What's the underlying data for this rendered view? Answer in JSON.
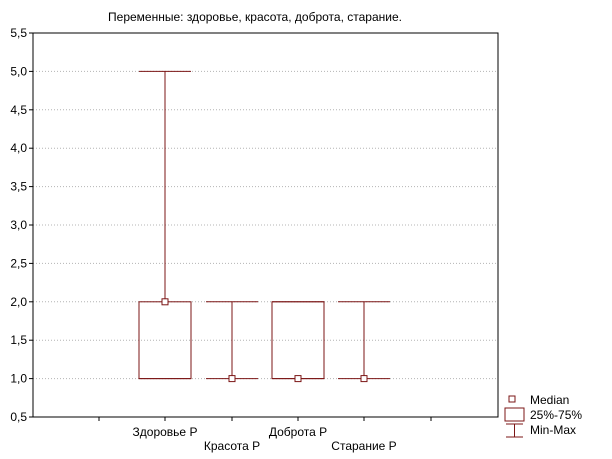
{
  "chart_data": {
    "type": "boxplot",
    "title": "Переменные: здоровье, красота, доброта, старание.",
    "xlabel": "",
    "ylabel": "",
    "ylim": [
      0.5,
      5.5
    ],
    "yticks": [
      "0,5",
      "1,0",
      "1,5",
      "2,0",
      "2,5",
      "3,0",
      "3,5",
      "4,0",
      "4,5",
      "5,0",
      "5,5"
    ],
    "grid": true,
    "categories": [
      "Здоровье Р",
      "Красота Р",
      "Доброта Р",
      "Старание Р"
    ],
    "series": [
      {
        "name": "Здоровье Р",
        "min": 1.0,
        "q1": 1.0,
        "median": 2.0,
        "q3": 2.0,
        "max": 5.0
      },
      {
        "name": "Красота Р",
        "min": 1.0,
        "q1": 1.0,
        "median": 1.0,
        "q3": 1.0,
        "max": 2.0
      },
      {
        "name": "Доброта Р",
        "min": 1.0,
        "q1": 1.0,
        "median": 1.0,
        "q3": 2.0,
        "max": 2.0
      },
      {
        "name": "Старание Р",
        "min": 1.0,
        "q1": 1.0,
        "median": 1.0,
        "q3": 1.0,
        "max": 2.0
      }
    ],
    "legend": {
      "position": "bottom-right",
      "items": [
        "Median",
        "25%-75%",
        "Min-Max"
      ]
    },
    "colors": {
      "box": "#7b1515",
      "grid": "#b4b4b4",
      "frame": "#000000"
    }
  }
}
